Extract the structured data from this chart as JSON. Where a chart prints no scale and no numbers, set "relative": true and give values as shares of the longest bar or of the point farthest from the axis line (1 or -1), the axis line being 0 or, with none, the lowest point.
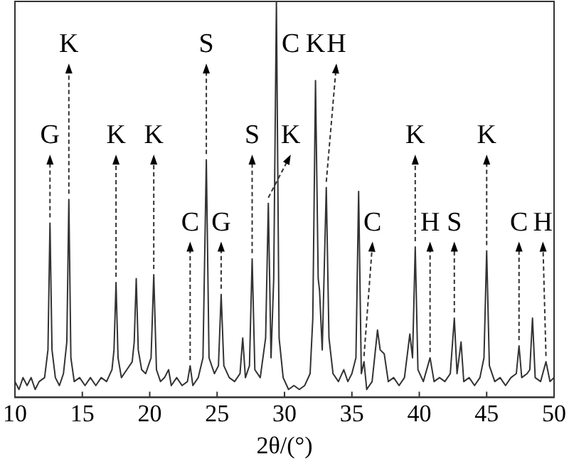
{
  "chart_data": {
    "type": "line",
    "relative": true,
    "xlabel": "2θ/(°)",
    "color": "#333333",
    "grid": false,
    "legend": false,
    "marker": "none",
    "tick_labels": "x",
    "xlim": [
      10,
      50
    ],
    "xticks": [
      10,
      15,
      20,
      25,
      30,
      35,
      40,
      45,
      50
    ],
    "x": [
      10.0,
      10.3,
      10.6,
      10.9,
      11.2,
      11.5,
      11.8,
      12.2,
      12.45,
      12.6,
      12.75,
      13.0,
      13.3,
      13.6,
      13.85,
      14.0,
      14.15,
      14.4,
      14.8,
      15.2,
      15.6,
      16.0,
      16.4,
      16.8,
      17.2,
      17.35,
      17.5,
      17.65,
      17.9,
      18.3,
      18.7,
      18.85,
      19.0,
      19.15,
      19.4,
      19.7,
      20.1,
      20.3,
      20.5,
      20.8,
      21.1,
      21.4,
      21.6,
      22.0,
      22.4,
      22.8,
      23.0,
      23.2,
      23.6,
      23.95,
      24.2,
      24.4,
      24.8,
      25.1,
      25.3,
      25.5,
      25.9,
      26.3,
      26.7,
      26.9,
      27.1,
      27.4,
      27.6,
      27.8,
      28.2,
      28.6,
      28.8,
      29.0,
      29.2,
      29.4,
      29.6,
      29.9,
      30.3,
      30.7,
      31.1,
      31.5,
      31.9,
      32.1,
      32.3,
      32.5,
      32.6,
      32.8,
      33.1,
      33.3,
      33.6,
      34.0,
      34.4,
      34.7,
      35.0,
      35.3,
      35.5,
      35.7,
      35.9,
      36.1,
      36.5,
      36.9,
      37.1,
      37.4,
      37.7,
      38.1,
      38.5,
      38.9,
      39.3,
      39.5,
      39.7,
      39.9,
      40.3,
      40.8,
      41.1,
      41.5,
      41.9,
      42.3,
      42.6,
      42.8,
      43.1,
      43.3,
      43.7,
      44.1,
      44.5,
      44.8,
      45.0,
      45.2,
      45.6,
      46.0,
      46.4,
      46.8,
      47.2,
      47.4,
      47.6,
      48.0,
      48.2,
      48.4,
      48.6,
      49.0,
      49.4,
      49.7,
      50.0
    ],
    "values": [
      0.04,
      0.02,
      0.05,
      0.03,
      0.05,
      0.02,
      0.04,
      0.05,
      0.12,
      0.44,
      0.12,
      0.05,
      0.03,
      0.06,
      0.14,
      0.5,
      0.1,
      0.04,
      0.05,
      0.03,
      0.05,
      0.03,
      0.05,
      0.04,
      0.07,
      0.12,
      0.29,
      0.1,
      0.05,
      0.07,
      0.09,
      0.14,
      0.3,
      0.12,
      0.07,
      0.06,
      0.1,
      0.31,
      0.07,
      0.04,
      0.05,
      0.07,
      0.03,
      0.05,
      0.03,
      0.04,
      0.08,
      0.03,
      0.05,
      0.1,
      0.6,
      0.1,
      0.06,
      0.08,
      0.26,
      0.08,
      0.05,
      0.04,
      0.06,
      0.15,
      0.05,
      0.08,
      0.35,
      0.07,
      0.05,
      0.15,
      0.49,
      0.1,
      0.3,
      1.0,
      0.15,
      0.05,
      0.02,
      0.03,
      0.02,
      0.03,
      0.06,
      0.2,
      0.8,
      0.3,
      0.27,
      0.12,
      0.53,
      0.15,
      0.06,
      0.04,
      0.07,
      0.04,
      0.06,
      0.1,
      0.52,
      0.06,
      0.09,
      0.02,
      0.04,
      0.17,
      0.12,
      0.11,
      0.04,
      0.05,
      0.03,
      0.05,
      0.16,
      0.1,
      0.38,
      0.07,
      0.04,
      0.1,
      0.04,
      0.05,
      0.04,
      0.06,
      0.2,
      0.06,
      0.14,
      0.04,
      0.05,
      0.03,
      0.05,
      0.1,
      0.37,
      0.08,
      0.04,
      0.05,
      0.03,
      0.05,
      0.06,
      0.13,
      0.05,
      0.06,
      0.07,
      0.2,
      0.05,
      0.04,
      0.09,
      0.04,
      0.05
    ],
    "annotations": [
      {
        "text": "G",
        "x": 12.6,
        "y": 0.44
      },
      {
        "text": "K",
        "x": 14.0,
        "y": 0.5
      },
      {
        "text": "K",
        "x": 17.5,
        "y": 0.29
      },
      {
        "text": "K",
        "x": 20.3,
        "y": 0.31
      },
      {
        "text": "C",
        "x": 23.0,
        "y": 0.08
      },
      {
        "text": "S",
        "x": 24.2,
        "y": 0.6
      },
      {
        "text": "G",
        "x": 25.3,
        "y": 0.26
      },
      {
        "text": "S",
        "x": 27.6,
        "y": 0.35
      },
      {
        "text": "K",
        "x": 28.8,
        "y": 0.49
      },
      {
        "text": "C",
        "x": 29.4,
        "y": 1.0
      },
      {
        "text": "K",
        "x": 32.3,
        "y": 0.8
      },
      {
        "text": "H",
        "x": 33.1,
        "y": 0.53
      },
      {
        "text": "C",
        "x": 35.9,
        "y": 0.09
      },
      {
        "text": "K",
        "x": 39.7,
        "y": 0.38
      },
      {
        "text": "H",
        "x": 40.8,
        "y": 0.1
      },
      {
        "text": "S",
        "x": 42.6,
        "y": 0.2
      },
      {
        "text": "K",
        "x": 45.0,
        "y": 0.37
      },
      {
        "text": "C",
        "x": 47.4,
        "y": 0.13
      },
      {
        "text": "H",
        "x": 49.4,
        "y": 0.09
      }
    ]
  }
}
